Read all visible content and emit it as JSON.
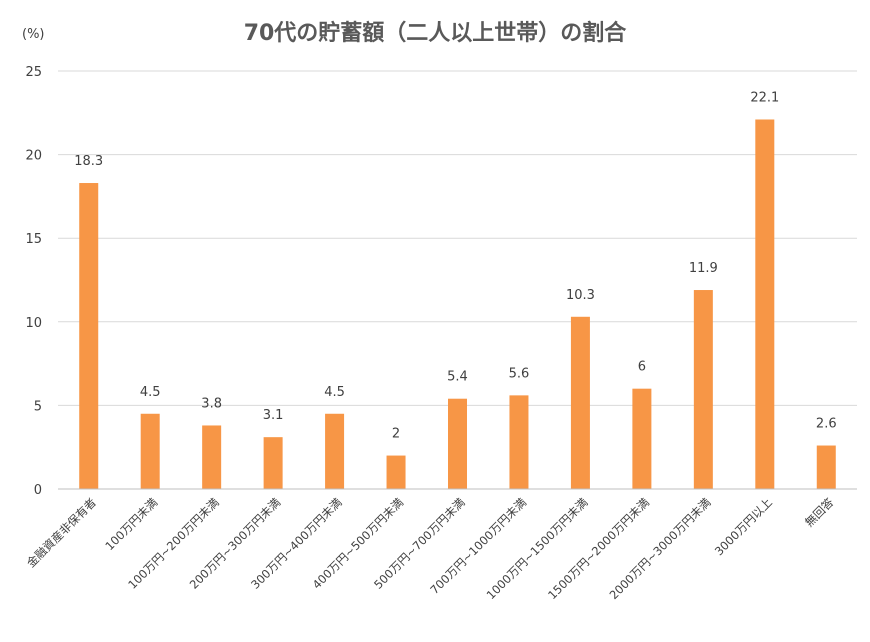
{
  "chart_data": {
    "type": "bar",
    "title": "70代の貯蓄額（二人以上世帯）の割合",
    "unit_label": "(%)",
    "xlabel": "",
    "ylabel": "",
    "ylim": [
      0,
      25
    ],
    "yticks": [
      "0",
      "5",
      "10",
      "15",
      "20",
      "25"
    ],
    "grid": true,
    "legend": "none",
    "bar_color": "#F79646",
    "categories": [
      "金融資産非保有者",
      "100万円未満",
      "100万円~200万円未満",
      "200万円~300万円未満",
      "300万円~400万円未満",
      "400万円~500万円未満",
      "500万円~700万円未満",
      "700万円~1000万円未満",
      "1000万円~1500万円未満",
      "1500万円~2000万円未満",
      "2000万円~3000万円未満",
      "3000万円以上",
      "無回答"
    ],
    "values": [
      18.3,
      4.5,
      3.8,
      3.1,
      4.5,
      2,
      5.4,
      5.6,
      10.3,
      6,
      11.9,
      22.1,
      2.6
    ],
    "value_labels": [
      "18.3",
      "4.5",
      "3.8",
      "3.1",
      "4.5",
      "2",
      "5.4",
      "5.6",
      "10.3",
      "6",
      "11.9",
      "22.1",
      "2.6"
    ]
  }
}
